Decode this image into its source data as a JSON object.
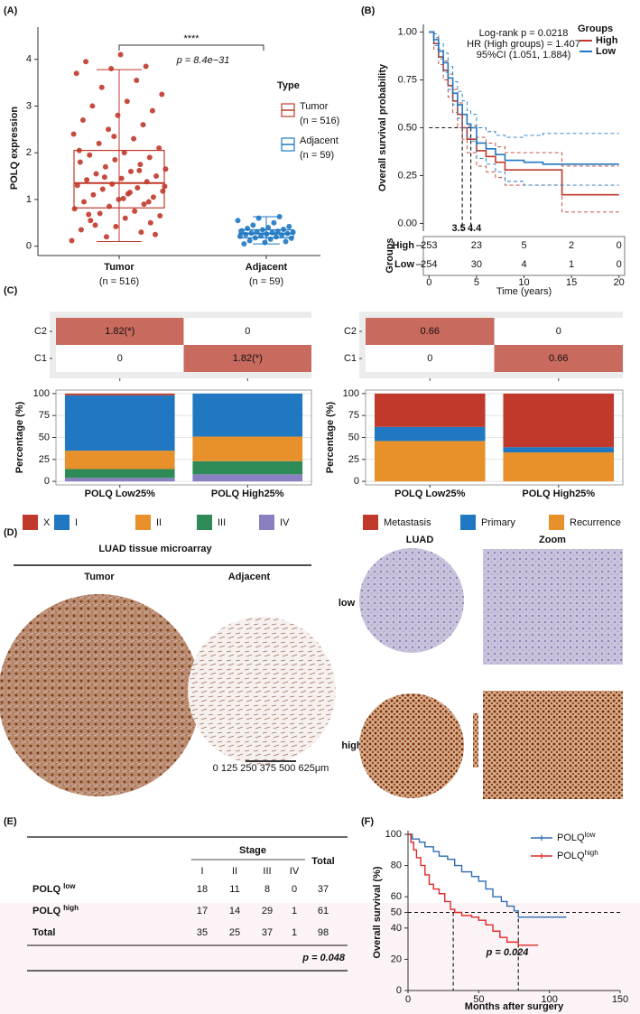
{
  "panel_labels": [
    "(A)",
    "(B)",
    "(C)",
    "(D)",
    "(E)",
    "(F)"
  ],
  "chart_data": [
    {
      "type": "box",
      "y_label": "POLQ expression",
      "ylim": [
        -0.2,
        4.4
      ],
      "yticks": [
        0,
        1,
        2,
        3,
        4
      ],
      "categories": [
        "Tumor",
        "Adjacent"
      ],
      "category_notes": [
        "(n = 516)",
        "(n = 59)"
      ],
      "legend_title": "Type",
      "annotations": [
        "****",
        "p = 8.4e−31"
      ],
      "series": [
        {
          "name": "Tumor",
          "note": "(n = 516)",
          "color": "#c0392b",
          "whisker_low": 0.1,
          "q1": 0.82,
          "median": 1.35,
          "q3": 2.05,
          "whisker_high": 3.78,
          "points": [
            0.12,
            0.2,
            0.3,
            0.35,
            0.42,
            0.5,
            0.55,
            0.6,
            0.65,
            0.7,
            0.75,
            0.8,
            0.85,
            0.9,
            0.95,
            1.0,
            1.05,
            1.1,
            1.12,
            1.18,
            1.22,
            1.25,
            1.3,
            1.33,
            1.38,
            1.42,
            1.45,
            1.5,
            1.55,
            1.6,
            1.65,
            1.7,
            1.75,
            1.8,
            1.85,
            1.9,
            1.95,
            2.0,
            2.1,
            2.2,
            2.3,
            2.4,
            2.5,
            2.6,
            2.7,
            2.8,
            2.9,
            3.0,
            3.1,
            3.25,
            3.4,
            3.55,
            3.7,
            3.8,
            3.85,
            3.95,
            4.1,
            0.25,
            0.45,
            1.15,
            1.28,
            1.48,
            1.62,
            2.05,
            2.35,
            0.95,
            0.68,
            1.02
          ]
        },
        {
          "name": "Adjacent",
          "note": "(n = 59)",
          "color": "#1f78c1",
          "whisker_low": 0.05,
          "q1": 0.18,
          "median": 0.27,
          "q3": 0.35,
          "whisker_high": 0.63,
          "points": [
            0.05,
            0.08,
            0.1,
            0.12,
            0.15,
            0.17,
            0.18,
            0.2,
            0.21,
            0.22,
            0.24,
            0.25,
            0.26,
            0.27,
            0.28,
            0.29,
            0.3,
            0.31,
            0.32,
            0.33,
            0.35,
            0.36,
            0.38,
            0.4,
            0.42,
            0.45,
            0.5,
            0.55,
            0.6,
            0.63
          ]
        }
      ]
    },
    {
      "type": "km",
      "y_label": "Overall survival probability",
      "x_label": "Time (years)",
      "xlim": [
        -0.6,
        20.6
      ],
      "xticks": [
        0,
        5,
        10,
        15,
        20
      ],
      "ylim": [
        -0.04,
        1.04
      ],
      "yticks": [
        {
          "value": 0,
          "label": "0.00"
        },
        {
          "value": 0.25,
          "label": "0.25"
        },
        {
          "value": 0.5,
          "label": "0.50"
        },
        {
          "value": 0.75,
          "label": "0.75"
        },
        {
          "value": 1,
          "label": "1.00"
        }
      ],
      "annotations": [
        "Log-rank p = 0.0218",
        "HR (High groups) = 1.407",
        "95%CI (1.051, 1.884)"
      ],
      "legend_title": "Groups",
      "risk_title": "Groups",
      "medians": [
        3.5,
        4.4
      ],
      "median_level": 0.5,
      "series": [
        {
          "name": "High",
          "color": "#c0392b",
          "x": [
            0,
            0.5,
            1,
            1.5,
            2,
            2.5,
            3,
            3.5,
            4,
            5,
            6,
            7,
            8,
            10,
            12,
            14,
            20
          ],
          "values": [
            1,
            0.94,
            0.87,
            0.8,
            0.72,
            0.64,
            0.57,
            0.5,
            0.44,
            0.38,
            0.35,
            0.32,
            0.28,
            0.28,
            0.28,
            0.15,
            0.15
          ],
          "ci_upper": [
            1,
            0.97,
            0.91,
            0.85,
            0.78,
            0.7,
            0.63,
            0.57,
            0.51,
            0.45,
            0.42,
            0.4,
            0.37,
            0.37,
            0.37,
            0.3,
            0.3
          ],
          "ci_lower": [
            1,
            0.91,
            0.83,
            0.75,
            0.66,
            0.58,
            0.5,
            0.44,
            0.37,
            0.3,
            0.27,
            0.24,
            0.2,
            0.2,
            0.2,
            0.06,
            0.06
          ],
          "at_risk": [
            253,
            23,
            5,
            2,
            0
          ]
        },
        {
          "name": "Low",
          "color": "#1f78c1",
          "x": [
            0,
            0.5,
            1,
            1.5,
            2,
            2.5,
            3,
            3.5,
            4,
            4.4,
            5,
            6,
            7,
            8,
            10,
            12,
            20
          ],
          "values": [
            1,
            0.96,
            0.9,
            0.84,
            0.76,
            0.68,
            0.62,
            0.57,
            0.52,
            0.5,
            0.42,
            0.39,
            0.36,
            0.33,
            0.32,
            0.31,
            0.31
          ],
          "ci_upper": [
            1,
            0.99,
            0.94,
            0.89,
            0.82,
            0.74,
            0.69,
            0.64,
            0.59,
            0.57,
            0.5,
            0.48,
            0.46,
            0.45,
            0.46,
            0.47,
            0.47
          ],
          "ci_lower": [
            1,
            0.93,
            0.86,
            0.79,
            0.7,
            0.62,
            0.55,
            0.5,
            0.45,
            0.43,
            0.34,
            0.31,
            0.27,
            0.22,
            0.2,
            0.2,
            0.2
          ],
          "at_risk": [
            254,
            30,
            4,
            1,
            0
          ]
        }
      ]
    },
    {
      "type": "heatmap",
      "rows": [
        "C2",
        "C1"
      ],
      "values": [
        [
          1.82,
          0
        ],
        [
          0,
          1.82
        ]
      ],
      "value_labels": [
        [
          "1.82(*)",
          "0"
        ],
        [
          "0",
          "1.82(*)"
        ]
      ],
      "high_color": "#c96a5e"
    },
    {
      "type": "heatmap",
      "rows": [
        "C2",
        "C1"
      ],
      "values": [
        [
          0.66,
          0
        ],
        [
          0,
          0.66
        ]
      ],
      "high_color": "#c96a5e"
    },
    {
      "type": "stacked_bar",
      "y_label": "Percentage (%)",
      "categories": [
        "POLQ Low25%",
        "POLQ High25%"
      ],
      "ylim": [
        -4,
        104
      ],
      "yticks": [
        0,
        25,
        50,
        75,
        100
      ],
      "grid": true,
      "series": [
        {
          "name": "X",
          "color": "#c0392b",
          "values": [
            2,
            0
          ]
        },
        {
          "name": "I",
          "color": "#1f78c1",
          "values": [
            63,
            49
          ]
        },
        {
          "name": "II",
          "color": "#e8902a",
          "values": [
            21,
            28
          ]
        },
        {
          "name": "III",
          "color": "#2e8b57",
          "values": [
            10,
            15
          ]
        },
        {
          "name": "IV",
          "color": "#8a7fc0",
          "values": [
            4,
            8
          ]
        }
      ]
    },
    {
      "type": "stacked_bar",
      "y_label": "Percentage (%)",
      "categories": [
        "POLQ Low25%",
        "POLQ High25%"
      ],
      "ylim": [
        -4,
        104
      ],
      "yticks": [
        0,
        25,
        50,
        75,
        100
      ],
      "grid": true,
      "series": [
        {
          "name": "Metastasis",
          "color": "#c0392b",
          "values": [
            38,
            61
          ]
        },
        {
          "name": "Primary",
          "color": "#1f78c1",
          "values": [
            16,
            6
          ]
        },
        {
          "name": "Recurrence",
          "color": "#e8902a",
          "values": [
            46,
            33
          ]
        }
      ]
    },
    {
      "type": "km",
      "y_label": "Overall survival (%)",
      "x_label": "Months after surgery",
      "xlim": [
        0,
        150
      ],
      "xticks": [
        0,
        50,
        100,
        150
      ],
      "ylim": [
        0,
        100
      ],
      "yticks": [
        0,
        20,
        40,
        50,
        60,
        80,
        100
      ],
      "annotations": [
        "p = 0.024"
      ],
      "medians": [
        32,
        78
      ],
      "median_level": 50,
      "series": [
        {
          "name": "POLQ",
          "name_sup": "low",
          "color": "#2e6db4",
          "x": [
            0,
            3,
            8,
            12,
            18,
            22,
            28,
            33,
            38,
            45,
            50,
            55,
            60,
            66,
            70,
            75,
            78,
            85,
            112
          ],
          "values": [
            100,
            97,
            95,
            92,
            89,
            86,
            84,
            80,
            76,
            73,
            70,
            65,
            60,
            57,
            54,
            51,
            47,
            47,
            47
          ]
        },
        {
          "name": "POLQ",
          "name_sup": "high",
          "color": "#e02828",
          "x": [
            0,
            2,
            4,
            6,
            9,
            12,
            15,
            18,
            22,
            26,
            30,
            33,
            38,
            45,
            50,
            55,
            60,
            65,
            70,
            78,
            92
          ],
          "values": [
            100,
            95,
            90,
            85,
            80,
            74,
            68,
            65,
            62,
            57,
            52,
            50,
            48,
            47,
            45,
            42,
            38,
            34,
            31,
            29,
            29
          ]
        }
      ]
    }
  ],
  "microarray": {
    "title": "LUAD tissue microarray",
    "columns": [
      "Tumor",
      "Adjacent"
    ],
    "right_columns": [
      "LUAD",
      "Zoom"
    ],
    "rows": [
      "low",
      "high"
    ],
    "scale_bar": "0  125  250  375  500  625μm"
  },
  "table": {
    "group": "Stage",
    "stages": [
      "I",
      "II",
      "III",
      "IV"
    ],
    "total": "Total",
    "rows": [
      {
        "label": "POLQ",
        "sup": "low",
        "values": [
          18,
          11,
          8,
          0,
          37
        ]
      },
      {
        "label": "POLQ",
        "sup": "high",
        "values": [
          17,
          14,
          29,
          1,
          61
        ]
      },
      {
        "label": "Total",
        "values": [
          35,
          25,
          37,
          1,
          98
        ]
      }
    ],
    "p": "p  =  0.048"
  }
}
